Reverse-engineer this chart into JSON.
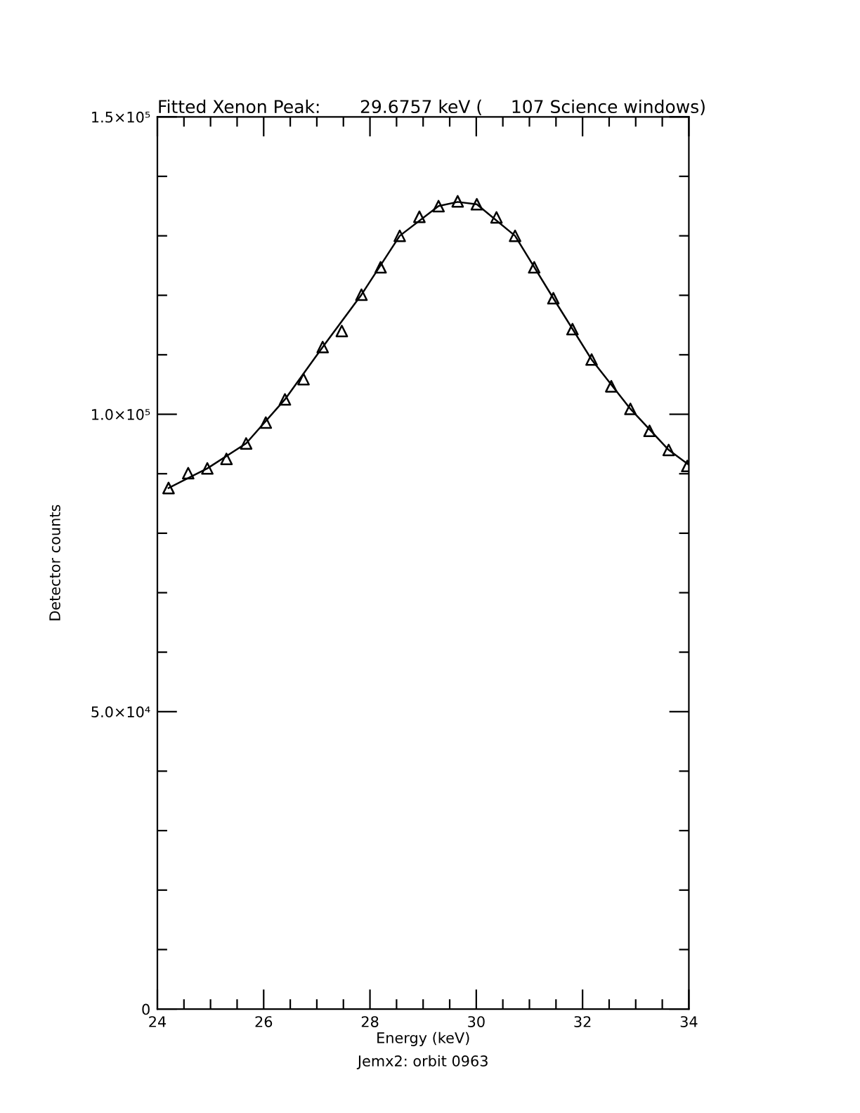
{
  "chart_data": {
    "type": "scatter",
    "title": "Fitted Xenon Peak:       29.6757 keV (     107 Science windows)",
    "xlabel": "Energy (keV)",
    "ylabel": "Detector counts",
    "annotations": [
      "Jemx2: orbit 0963"
    ],
    "x": [
      24.21,
      24.58,
      24.94,
      25.3,
      25.67,
      26.04,
      26.4,
      26.75,
      27.11,
      27.47,
      27.84,
      28.2,
      28.56,
      28.93,
      29.29,
      29.65,
      30.01,
      30.38,
      30.73,
      31.09,
      31.45,
      31.81,
      32.17,
      32.54,
      32.9,
      33.26,
      33.62,
      33.97
    ],
    "series": [
      {
        "marker": "triangle",
        "color": "#000000",
        "values": [
          87600,
          90100,
          90900,
          92500,
          95100,
          98600,
          102500,
          105900,
          111300,
          114000,
          120100,
          124700,
          130000,
          133200,
          135000,
          135800,
          135300,
          133100,
          130000,
          124700,
          119500,
          114300,
          109200,
          104700,
          100900,
          97200,
          94000,
          91300
        ]
      },
      {
        "type": "line",
        "marker": "none",
        "line_style": "solid",
        "color": "#000000",
        "x": [
          24.21,
          24.94,
          25.67,
          26.4,
          27.11,
          27.84,
          28.56,
          29.29,
          29.65,
          30.01,
          30.73,
          31.45,
          32.17,
          32.9,
          33.62,
          34.0
        ],
        "values": [
          87600,
          90900,
          95100,
          102500,
          111300,
          120100,
          130000,
          135000,
          135700,
          135300,
          130000,
          119500,
          109200,
          100900,
          94000,
          91500
        ]
      }
    ],
    "xlim": [
      24,
      34
    ],
    "xticks": [
      24,
      {
        "value": 24.5,
        "label": null
      },
      {
        "value": 25,
        "label": null
      },
      {
        "value": 25.5,
        "label": null
      },
      26,
      {
        "value": 26.5,
        "label": null
      },
      {
        "value": 27,
        "label": null
      },
      {
        "value": 27.5,
        "label": null
      },
      28,
      {
        "value": 28.5,
        "label": null
      },
      {
        "value": 29,
        "label": null
      },
      {
        "value": 29.5,
        "label": null
      },
      30,
      {
        "value": 30.5,
        "label": null
      },
      {
        "value": 31,
        "label": null
      },
      {
        "value": 31.5,
        "label": null
      },
      32,
      {
        "value": 32.5,
        "label": null
      },
      {
        "value": 33,
        "label": null
      },
      {
        "value": 33.5,
        "label": null
      },
      34
    ],
    "ylim": [
      0,
      150000
    ],
    "yticks": [
      0,
      {
        "value": 10000,
        "label": null
      },
      {
        "value": 20000,
        "label": null
      },
      {
        "value": 30000,
        "label": null
      },
      {
        "value": 40000,
        "label": null
      },
      {
        "value": 50000,
        "label": "5.0×10⁴"
      },
      {
        "value": 60000,
        "label": null
      },
      {
        "value": 70000,
        "label": null
      },
      {
        "value": 80000,
        "label": null
      },
      {
        "value": 90000,
        "label": null
      },
      {
        "value": 100000,
        "label": "1.0×10⁵"
      },
      {
        "value": 110000,
        "label": null
      },
      {
        "value": 120000,
        "label": null
      },
      {
        "value": 130000,
        "label": null
      },
      {
        "value": 140000,
        "label": null
      },
      {
        "value": 150000,
        "label": "1.5×10⁵"
      }
    ],
    "grid": false,
    "legend": false
  }
}
